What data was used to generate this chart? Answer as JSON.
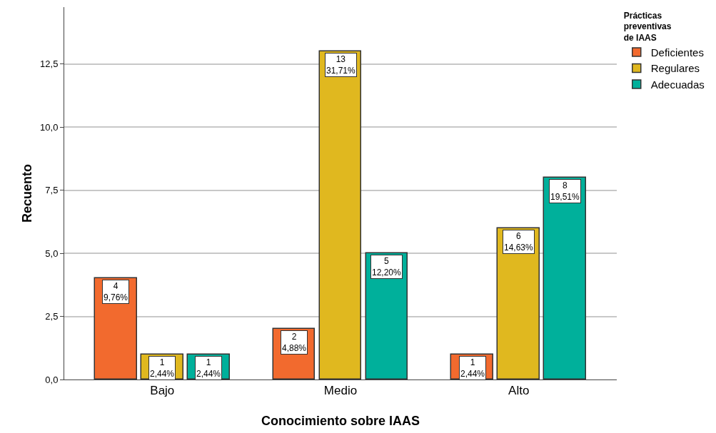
{
  "chart_data": {
    "type": "bar",
    "xlabel": "Conocimiento sobre IAAS",
    "ylabel": "Recuento",
    "legend_title": "Prácticas\npreventivas\nde IAAS",
    "categories": [
      "Bajo",
      "Medio",
      "Alto"
    ],
    "series": [
      {
        "name": "Deficientes",
        "color": "#f26a2e",
        "values": [
          4,
          2,
          1
        ],
        "value_labels": [
          "4\n9,76%",
          "2\n4,88%",
          "1\n2,44%"
        ]
      },
      {
        "name": "Regulares",
        "color": "#e0b81f",
        "values": [
          1,
          13,
          6
        ],
        "value_labels": [
          "1\n2,44%",
          "13\n31,71%",
          "6\n14,63%"
        ]
      },
      {
        "name": "Adecuadas",
        "color": "#00b09b",
        "values": [
          1,
          5,
          8
        ],
        "value_labels": [
          "1\n2,44%",
          "5\n12,20%",
          "8\n19,51%"
        ]
      }
    ],
    "ylim": [
      0,
      14.75
    ],
    "yticks": [
      {
        "value": 0,
        "label": "0,0"
      },
      {
        "value": 2.5,
        "label": "2,5"
      },
      {
        "value": 5,
        "label": "5,0"
      },
      {
        "value": 7.5,
        "label": "7,5"
      },
      {
        "value": 10,
        "label": "10,0"
      },
      {
        "value": 12.5,
        "label": "12,5"
      }
    ],
    "grid": "y",
    "legend": "top right"
  }
}
